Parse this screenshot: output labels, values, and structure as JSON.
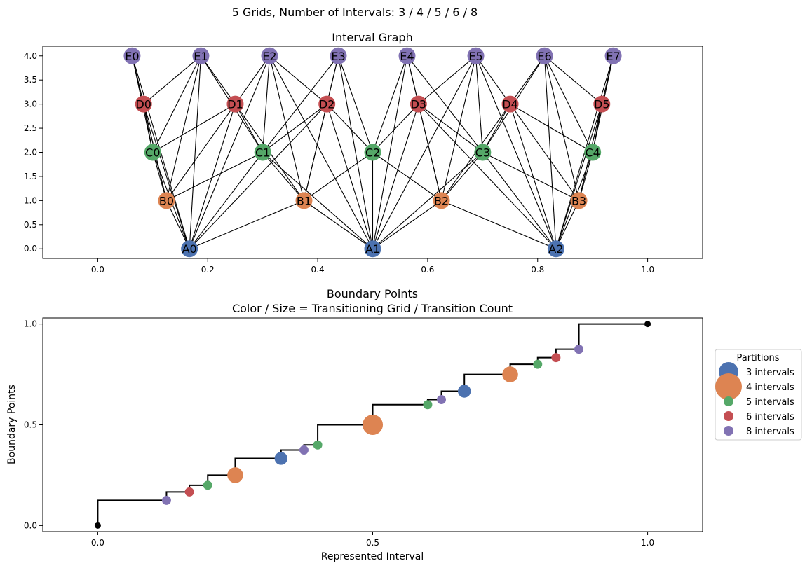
{
  "suptitle": "5 Grids, Number of Intervals: 3 / 4 / 5 / 6 / 8",
  "colors": {
    "A": "#4c72b0",
    "B": "#dd8452",
    "C": "#55a868",
    "D": "#c44e52",
    "E": "#8172b3",
    "endpoint": "#000000",
    "edge": "#000000"
  },
  "chart_data": [
    {
      "type": "network",
      "title": "Interval Graph",
      "xlim": [
        -0.1,
        1.1
      ],
      "ylim": [
        -0.2,
        4.2
      ],
      "xticks": [
        0.0,
        0.2,
        0.4,
        0.6,
        0.8,
        1.0
      ],
      "xtick_labels": [
        "0.0",
        "0.2",
        "0.4",
        "0.6",
        "0.8",
        "1.0"
      ],
      "yticks": [
        0.0,
        0.5,
        1.0,
        1.5,
        2.0,
        2.5,
        3.0,
        3.5,
        4.0
      ],
      "ytick_labels": [
        "0.0",
        "0.5",
        "1.0",
        "1.5",
        "2.0",
        "2.5",
        "3.0",
        "3.5",
        "4.0"
      ],
      "nodes": [
        {
          "id": "A0",
          "x": 0.1667,
          "y": 0,
          "group": "A"
        },
        {
          "id": "A1",
          "x": 0.5,
          "y": 0,
          "group": "A"
        },
        {
          "id": "A2",
          "x": 0.8333,
          "y": 0,
          "group": "A"
        },
        {
          "id": "B0",
          "x": 0.125,
          "y": 1,
          "group": "B"
        },
        {
          "id": "B1",
          "x": 0.375,
          "y": 1,
          "group": "B"
        },
        {
          "id": "B2",
          "x": 0.625,
          "y": 1,
          "group": "B"
        },
        {
          "id": "B3",
          "x": 0.875,
          "y": 1,
          "group": "B"
        },
        {
          "id": "C0",
          "x": 0.1,
          "y": 2,
          "group": "C"
        },
        {
          "id": "C1",
          "x": 0.3,
          "y": 2,
          "group": "C"
        },
        {
          "id": "C2",
          "x": 0.5,
          "y": 2,
          "group": "C"
        },
        {
          "id": "C3",
          "x": 0.7,
          "y": 2,
          "group": "C"
        },
        {
          "id": "C4",
          "x": 0.9,
          "y": 2,
          "group": "C"
        },
        {
          "id": "D0",
          "x": 0.0833,
          "y": 3,
          "group": "D"
        },
        {
          "id": "D1",
          "x": 0.25,
          "y": 3,
          "group": "D"
        },
        {
          "id": "D2",
          "x": 0.4167,
          "y": 3,
          "group": "D"
        },
        {
          "id": "D3",
          "x": 0.5833,
          "y": 3,
          "group": "D"
        },
        {
          "id": "D4",
          "x": 0.75,
          "y": 3,
          "group": "D"
        },
        {
          "id": "D5",
          "x": 0.9167,
          "y": 3,
          "group": "D"
        },
        {
          "id": "E0",
          "x": 0.0625,
          "y": 4,
          "group": "E"
        },
        {
          "id": "E1",
          "x": 0.1875,
          "y": 4,
          "group": "E"
        },
        {
          "id": "E2",
          "x": 0.3125,
          "y": 4,
          "group": "E"
        },
        {
          "id": "E3",
          "x": 0.4375,
          "y": 4,
          "group": "E"
        },
        {
          "id": "E4",
          "x": 0.5625,
          "y": 4,
          "group": "E"
        },
        {
          "id": "E5",
          "x": 0.6875,
          "y": 4,
          "group": "E"
        },
        {
          "id": "E6",
          "x": 0.8125,
          "y": 4,
          "group": "E"
        },
        {
          "id": "E7",
          "x": 0.9375,
          "y": 4,
          "group": "E"
        }
      ],
      "edges": [
        [
          "A0",
          "B0"
        ],
        [
          "A0",
          "B1"
        ],
        [
          "A0",
          "C0"
        ],
        [
          "A0",
          "C1"
        ],
        [
          "A0",
          "D0"
        ],
        [
          "A0",
          "D1"
        ],
        [
          "A0",
          "D2"
        ],
        [
          "A0",
          "E0"
        ],
        [
          "A0",
          "E1"
        ],
        [
          "A0",
          "E2"
        ],
        [
          "A1",
          "B1"
        ],
        [
          "A1",
          "B2"
        ],
        [
          "A1",
          "C1"
        ],
        [
          "A1",
          "C2"
        ],
        [
          "A1",
          "C3"
        ],
        [
          "A1",
          "D2"
        ],
        [
          "A1",
          "D3"
        ],
        [
          "A1",
          "E2"
        ],
        [
          "A1",
          "E3"
        ],
        [
          "A1",
          "E4"
        ],
        [
          "A1",
          "E5"
        ],
        [
          "A2",
          "B2"
        ],
        [
          "A2",
          "B3"
        ],
        [
          "A2",
          "C3"
        ],
        [
          "A2",
          "C4"
        ],
        [
          "A2",
          "D3"
        ],
        [
          "A2",
          "D4"
        ],
        [
          "A2",
          "D5"
        ],
        [
          "A2",
          "E5"
        ],
        [
          "A2",
          "E6"
        ],
        [
          "A2",
          "E7"
        ],
        [
          "B0",
          "C0"
        ],
        [
          "B0",
          "C1"
        ],
        [
          "B0",
          "D0"
        ],
        [
          "B0",
          "D1"
        ],
        [
          "B0",
          "E0"
        ],
        [
          "B0",
          "E1"
        ],
        [
          "B1",
          "C1"
        ],
        [
          "B1",
          "C2"
        ],
        [
          "B1",
          "D1"
        ],
        [
          "B1",
          "D2"
        ],
        [
          "B1",
          "E2"
        ],
        [
          "B1",
          "E3"
        ],
        [
          "B2",
          "C2"
        ],
        [
          "B2",
          "C3"
        ],
        [
          "B2",
          "D3"
        ],
        [
          "B2",
          "D4"
        ],
        [
          "B2",
          "E4"
        ],
        [
          "B2",
          "E5"
        ],
        [
          "B3",
          "C3"
        ],
        [
          "B3",
          "C4"
        ],
        [
          "B3",
          "D4"
        ],
        [
          "B3",
          "D5"
        ],
        [
          "B3",
          "E6"
        ],
        [
          "B3",
          "E7"
        ],
        [
          "C0",
          "D0"
        ],
        [
          "C0",
          "D1"
        ],
        [
          "C0",
          "E0"
        ],
        [
          "C0",
          "E1"
        ],
        [
          "C1",
          "D1"
        ],
        [
          "C1",
          "D2"
        ],
        [
          "C1",
          "E1"
        ],
        [
          "C1",
          "E2"
        ],
        [
          "C1",
          "E3"
        ],
        [
          "C2",
          "D2"
        ],
        [
          "C2",
          "D3"
        ],
        [
          "C2",
          "E3"
        ],
        [
          "C2",
          "E4"
        ],
        [
          "C3",
          "D3"
        ],
        [
          "C3",
          "D4"
        ],
        [
          "C3",
          "E4"
        ],
        [
          "C3",
          "E5"
        ],
        [
          "C3",
          "E6"
        ],
        [
          "C4",
          "D4"
        ],
        [
          "C4",
          "D5"
        ],
        [
          "C4",
          "E6"
        ],
        [
          "C4",
          "E7"
        ],
        [
          "D0",
          "E0"
        ],
        [
          "D0",
          "E1"
        ],
        [
          "D1",
          "E1"
        ],
        [
          "D1",
          "E2"
        ],
        [
          "D2",
          "E2"
        ],
        [
          "D2",
          "E3"
        ],
        [
          "D3",
          "E4"
        ],
        [
          "D3",
          "E5"
        ],
        [
          "D4",
          "E5"
        ],
        [
          "D4",
          "E6"
        ],
        [
          "D5",
          "E6"
        ],
        [
          "D5",
          "E7"
        ]
      ]
    },
    {
      "type": "scatter",
      "title": "Boundary Points\nColor / Size = Transitioning Grid / Transition Count",
      "xlabel": "Represented Interval",
      "ylabel": "Boundary Points",
      "xlim": [
        -0.1,
        1.1
      ],
      "ylim": [
        -0.03,
        1.03
      ],
      "xticks": [
        0.0,
        0.5,
        1.0
      ],
      "xtick_labels": [
        "0.0",
        "0.5",
        "1.0"
      ],
      "yticks": [
        0.0,
        0.5,
        1.0
      ],
      "ytick_labels": [
        "0.0",
        "0.5",
        "1.0"
      ],
      "legend_title": "Partitions",
      "legend_position": "right outside",
      "legend": [
        {
          "label": "3 intervals",
          "group": "A",
          "marker_size": 14
        },
        {
          "label": "4 intervals",
          "group": "B",
          "marker_size": 19
        },
        {
          "label": "5 intervals",
          "group": "C",
          "marker_size": 7
        },
        {
          "label": "6 intervals",
          "group": "D",
          "marker_size": 7
        },
        {
          "label": "8 intervals",
          "group": "E",
          "marker_size": 7
        }
      ],
      "points": [
        {
          "x": 0.0,
          "y": 0.0,
          "group": "endpoint",
          "count": 0
        },
        {
          "x": 0.125,
          "y": 0.125,
          "group": "E",
          "count": 1
        },
        {
          "x": 0.1667,
          "y": 0.1667,
          "group": "D",
          "count": 1
        },
        {
          "x": 0.2,
          "y": 0.2,
          "group": "C",
          "count": 1
        },
        {
          "x": 0.25,
          "y": 0.25,
          "group": "B",
          "count": 3
        },
        {
          "x": 0.3333,
          "y": 0.3333,
          "group": "A",
          "count": 2
        },
        {
          "x": 0.375,
          "y": 0.375,
          "group": "E",
          "count": 1
        },
        {
          "x": 0.4,
          "y": 0.4,
          "group": "C",
          "count": 1
        },
        {
          "x": 0.5,
          "y": 0.5,
          "group": "B",
          "count": 5
        },
        {
          "x": 0.6,
          "y": 0.6,
          "group": "C",
          "count": 1
        },
        {
          "x": 0.625,
          "y": 0.625,
          "group": "E",
          "count": 1
        },
        {
          "x": 0.6667,
          "y": 0.6667,
          "group": "A",
          "count": 2
        },
        {
          "x": 0.75,
          "y": 0.75,
          "group": "B",
          "count": 3
        },
        {
          "x": 0.8,
          "y": 0.8,
          "group": "C",
          "count": 1
        },
        {
          "x": 0.8333,
          "y": 0.8333,
          "group": "D",
          "count": 1
        },
        {
          "x": 0.875,
          "y": 0.875,
          "group": "E",
          "count": 1
        },
        {
          "x": 1.0,
          "y": 1.0,
          "group": "endpoint",
          "count": 0
        }
      ]
    }
  ]
}
